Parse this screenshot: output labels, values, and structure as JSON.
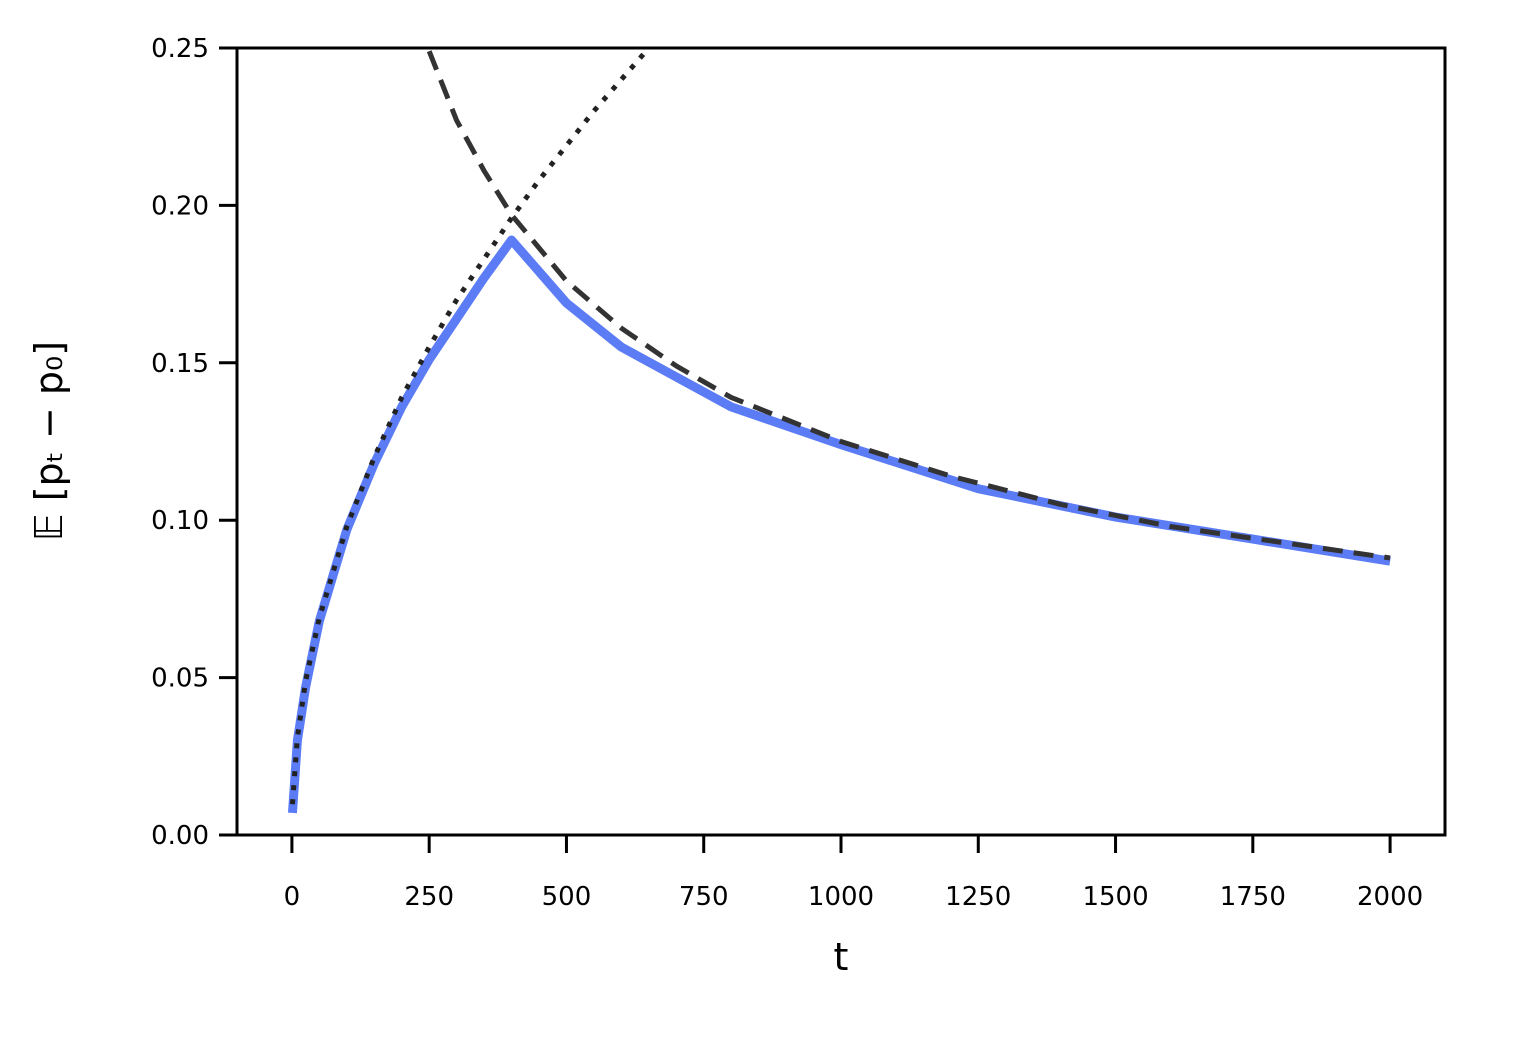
{
  "chart_data": {
    "type": "line",
    "xlabel": "t",
    "ylabel": "𝔼 [pₜ − p₀]",
    "xlim": [
      -100,
      2100
    ],
    "ylim": [
      0,
      0.25
    ],
    "xticks": [
      0,
      250,
      500,
      750,
      1000,
      1250,
      1500,
      1750,
      2000
    ],
    "yticks": [
      {
        "value": 0,
        "label": "0.00"
      },
      {
        "value": 0.05,
        "label": "0.05"
      },
      {
        "value": 0.1,
        "label": "0.10"
      },
      {
        "value": 0.15,
        "label": "0.15"
      },
      {
        "value": 0.2,
        "label": "0.20"
      },
      {
        "value": 0.25,
        "label": "0.25"
      }
    ],
    "series": [
      {
        "color": "#5b7cf5",
        "style": "solid",
        "x": [
          1,
          10,
          25,
          50,
          100,
          150,
          200,
          250,
          300,
          350,
          400,
          500,
          600,
          800,
          1000,
          1250,
          1500,
          1750,
          2000
        ],
        "values": [
          0.007,
          0.03,
          0.047,
          0.068,
          0.097,
          0.118,
          0.136,
          0.151,
          0.164,
          0.177,
          0.189,
          0.169,
          0.155,
          0.136,
          0.124,
          0.11,
          0.101,
          0.094,
          0.087
        ]
      },
      {
        "color": "#222222",
        "style": "dotted",
        "x": [
          1,
          10,
          25,
          50,
          100,
          150,
          200,
          250,
          300,
          350,
          400,
          450,
          500,
          550,
          600,
          650
        ],
        "values": [
          0.0098,
          0.031,
          0.049,
          0.069,
          0.098,
          0.12,
          0.139,
          0.155,
          0.17,
          0.183,
          0.196,
          0.208,
          0.219,
          0.23,
          0.24,
          0.25
        ]
      },
      {
        "color": "#333333",
        "style": "dashed",
        "x": [
          250,
          300,
          350,
          400,
          500,
          600,
          700,
          800,
          1000,
          1200,
          1400,
          1600,
          1800,
          2000
        ],
        "values": [
          0.249,
          0.227,
          0.211,
          0.197,
          0.176,
          0.161,
          0.149,
          0.139,
          0.125,
          0.114,
          0.105,
          0.098,
          0.093,
          0.088
        ]
      }
    ]
  }
}
